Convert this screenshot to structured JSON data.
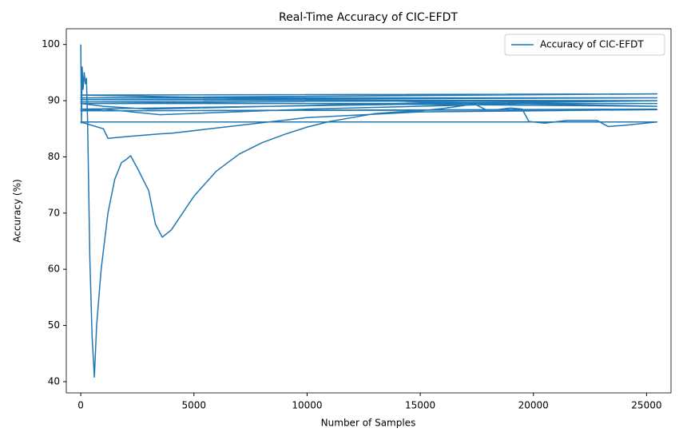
{
  "chart_data": {
    "type": "line",
    "title": "Real-Time Accuracy of CIC-EFDT",
    "xlabel": "Number of Samples",
    "ylabel": "Accuracy (%)",
    "xlim": [
      -640,
      26080
    ],
    "ylim": [
      38,
      102.8
    ],
    "xticks": [
      0,
      5000,
      10000,
      15000,
      20000,
      25000
    ],
    "yticks": [
      40,
      50,
      60,
      70,
      80,
      90,
      100
    ],
    "legend": "upper right",
    "series": [
      {
        "name": "Accuracy of CIC-EFDT",
        "color": "#1f77b4",
        "x": [
          0,
          30,
          60,
          100,
          150,
          200,
          250,
          300,
          400,
          500,
          600,
          700,
          900,
          1200,
          1500,
          1800,
          2000,
          2200,
          2500,
          3000,
          3300,
          3600,
          4000,
          5000,
          6000,
          7000,
          8000,
          9000,
          10000,
          11000,
          12000,
          13000,
          14000,
          15000,
          16000,
          17400,
          18000,
          19000,
          19500,
          19800,
          20500,
          21500,
          22800,
          23300,
          24000,
          25460,
          0,
          1000,
          1200,
          2000,
          3500,
          4000,
          10000,
          15000,
          25460,
          0,
          1000,
          2000,
          3500,
          10000,
          20000,
          25460,
          0,
          1000,
          3000,
          15000,
          25460,
          0,
          25460,
          0,
          25460,
          0,
          25460,
          0,
          25460,
          0,
          1000,
          25460
        ],
        "values": [
          100,
          86,
          96,
          92,
          95,
          93,
          94,
          86.5,
          62,
          48,
          40.8,
          50,
          60,
          70,
          76,
          79,
          79.5,
          80.2,
          78,
          74,
          68,
          65.7,
          67,
          73,
          77.5,
          80.5,
          82.5,
          84,
          85.3,
          86.3,
          87,
          87.7,
          88,
          88.2,
          88.6,
          89.4,
          88.2,
          88.7,
          88.5,
          86.3,
          86,
          86.5,
          86.5,
          85.4,
          85.6,
          86.2,
          86.2,
          85,
          83.3,
          83.6,
          84.1,
          84.2,
          87,
          88,
          88.4,
          88.2,
          88.5,
          88.1,
          87.5,
          88.5,
          89.5,
          89.5,
          89.5,
          89,
          88.5,
          89.6,
          90,
          90.2,
          90.5,
          90.5,
          91.2,
          91,
          89,
          89.8,
          90,
          88.5,
          88.2,
          88.5
        ]
      }
    ]
  }
}
